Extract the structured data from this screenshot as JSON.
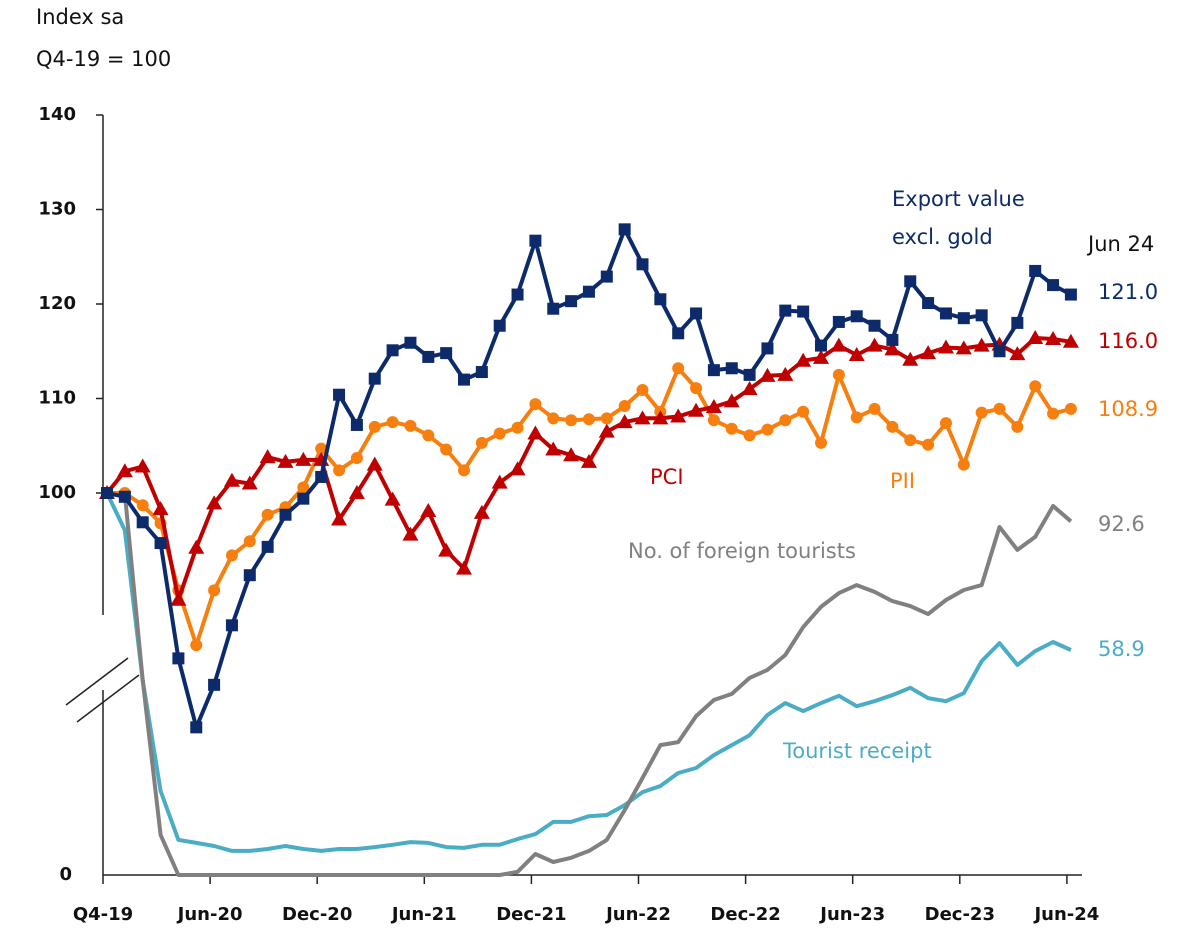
{
  "chart_data": {
    "type": "line",
    "ylabel": [
      "Index sa",
      "Q4-19 = 100"
    ],
    "annotation": "Jun 24",
    "categories": [
      "Q4-19",
      null,
      null,
      null,
      null,
      null,
      "Jun-20",
      null,
      null,
      null,
      null,
      null,
      "Dec-20",
      null,
      null,
      null,
      null,
      null,
      "Jun-21",
      null,
      null,
      null,
      null,
      null,
      "Dec-21",
      null,
      null,
      null,
      null,
      null,
      "Jun-22",
      null,
      null,
      null,
      null,
      null,
      "Dec-22",
      null,
      null,
      null,
      null,
      null,
      "Jun-23",
      null,
      null,
      null,
      null,
      null,
      "Dec-23",
      null,
      null,
      null,
      null,
      null,
      "Jun-24"
    ],
    "ylim": [
      100,
      140
    ],
    "yticks": [
      100,
      110,
      120,
      130,
      140
    ],
    "y2lim": [
      0,
      100
    ],
    "y2ticks": [
      0
    ],
    "series": [
      {
        "name": "Export value excl. gold",
        "color": "#0d2a6b",
        "marker": "square",
        "values": [
          100,
          99.6,
          96.9,
          94.7,
          82.5,
          75.2,
          79.7,
          86.0,
          91.3,
          94.3,
          97.7,
          99.4,
          101.7,
          110.4,
          107.2,
          112.1,
          115.1,
          115.9,
          114.4,
          114.8,
          112.0,
          112.8,
          117.7,
          121.0,
          126.7,
          119.5,
          120.3,
          121.3,
          122.9,
          127.9,
          124.2,
          120.5,
          116.9,
          119.0,
          113.0,
          113.2,
          112.5,
          115.3,
          119.3,
          119.2,
          115.6,
          118.1,
          118.7,
          117.7,
          116.2,
          122.4,
          120.1,
          119.0,
          118.5,
          118.8,
          115.0,
          118.0,
          123.5,
          122.0,
          121.0
        ],
        "value_labels": [
          null,
          null,
          null,
          null,
          null,
          null,
          null,
          null,
          null,
          null,
          null,
          null,
          null,
          null,
          null,
          null,
          null,
          null,
          null,
          null,
          null,
          null,
          null,
          null,
          null,
          null,
          null,
          null,
          null,
          null,
          null,
          null,
          null,
          null,
          null,
          null,
          null,
          null,
          null,
          null,
          null,
          null,
          null,
          null,
          null,
          null,
          null,
          null,
          null,
          null,
          null,
          null,
          null,
          null,
          "121.0"
        ]
      },
      {
        "name": "PCI",
        "color": "#c00000",
        "marker": "triangle",
        "values": [
          100,
          102.3,
          102.8,
          98.3,
          88.7,
          94.2,
          98.9,
          101.3,
          101.0,
          103.8,
          103.3,
          103.5,
          103.5,
          97.2,
          100.0,
          103.0,
          99.3,
          95.6,
          98.1,
          93.9,
          92.0,
          97.9,
          101.1,
          102.5,
          106.3,
          104.6,
          104.0,
          103.3,
          106.5,
          107.5,
          107.9,
          107.9,
          108.1,
          108.7,
          109.1,
          109.7,
          111.0,
          112.4,
          112.5,
          114.0,
          114.3,
          115.6,
          114.6,
          115.6,
          115.2,
          114.1,
          114.8,
          115.4,
          115.3,
          115.6,
          115.7,
          114.7,
          116.4,
          116.3,
          116.0
        ],
        "value_labels": [
          null,
          null,
          null,
          null,
          null,
          null,
          null,
          null,
          null,
          null,
          null,
          null,
          null,
          null,
          null,
          null,
          null,
          null,
          null,
          null,
          null,
          null,
          null,
          null,
          null,
          null,
          null,
          null,
          null,
          null,
          null,
          null,
          null,
          null,
          null,
          null,
          null,
          null,
          null,
          null,
          null,
          null,
          null,
          null,
          null,
          null,
          null,
          null,
          null,
          null,
          null,
          null,
          null,
          null,
          "116.0"
        ]
      },
      {
        "name": "PII",
        "color": "#f77f0f",
        "marker": "circle",
        "values": [
          100,
          100.0,
          98.7,
          96.8,
          89.7,
          83.9,
          89.7,
          93.4,
          94.9,
          97.7,
          98.5,
          100.6,
          104.7,
          102.4,
          103.7,
          107.0,
          107.5,
          107.1,
          106.1,
          104.6,
          102.4,
          105.3,
          106.3,
          106.9,
          109.4,
          107.9,
          107.7,
          107.8,
          107.9,
          109.2,
          110.9,
          108.6,
          113.2,
          111.1,
          107.7,
          106.8,
          106.1,
          106.7,
          107.7,
          108.6,
          105.3,
          112.5,
          108.0,
          108.9,
          107.0,
          105.6,
          105.1,
          107.4,
          103.0,
          108.5,
          108.9,
          107.0,
          111.3,
          108.4,
          108.9
        ],
        "value_labels": [
          null,
          null,
          null,
          null,
          null,
          null,
          null,
          null,
          null,
          null,
          null,
          null,
          null,
          null,
          null,
          null,
          null,
          null,
          null,
          null,
          null,
          null,
          null,
          null,
          null,
          null,
          null,
          null,
          null,
          null,
          null,
          null,
          null,
          null,
          null,
          null,
          null,
          null,
          null,
          null,
          null,
          null,
          null,
          null,
          null,
          null,
          null,
          null,
          null,
          null,
          null,
          null,
          null,
          null,
          "108.9"
        ]
      },
      {
        "name": "No. of foreign tourists",
        "color": "#808080",
        "axis": "y2",
        "values": [
          100,
          100,
          51,
          10.5,
          0,
          0,
          0,
          0,
          0,
          0,
          0,
          0,
          0,
          0,
          0,
          0,
          0,
          0,
          0,
          0,
          0,
          0,
          0,
          0.8,
          5.5,
          3.4,
          4.5,
          6.3,
          9.2,
          17,
          25.4,
          34,
          34.8,
          41.6,
          45.8,
          47.4,
          51.6,
          53.7,
          57.6,
          64.9,
          70.2,
          73.8,
          75.9,
          74.1,
          71.7,
          70.4,
          68.3,
          72.0,
          74.6,
          75.9,
          91.1,
          85.1,
          88.5,
          96.6,
          92.6
        ],
        "value_labels": [
          null,
          null,
          null,
          null,
          null,
          null,
          null,
          null,
          null,
          null,
          null,
          null,
          null,
          null,
          null,
          null,
          null,
          null,
          null,
          null,
          null,
          null,
          null,
          null,
          null,
          null,
          null,
          null,
          null,
          null,
          null,
          null,
          null,
          null,
          null,
          null,
          null,
          null,
          null,
          null,
          null,
          null,
          null,
          null,
          null,
          null,
          null,
          null,
          null,
          null,
          null,
          null,
          null,
          null,
          "92.6"
        ]
      },
      {
        "name": "Tourist receipt",
        "color": "#4bacc6",
        "axis": "y2",
        "values": [
          100,
          90.3,
          51,
          22,
          9.2,
          8.4,
          7.6,
          6.3,
          6.3,
          6.8,
          7.6,
          6.8,
          6.3,
          6.8,
          6.8,
          7.3,
          7.9,
          8.6,
          8.4,
          7.3,
          7.1,
          7.9,
          7.9,
          9.4,
          10.7,
          13.9,
          13.9,
          15.4,
          15.7,
          18.3,
          21.7,
          23.3,
          26.7,
          28.0,
          31.4,
          34.0,
          36.6,
          41.9,
          45.0,
          42.9,
          45.0,
          46.9,
          44.2,
          45.5,
          47.1,
          49.0,
          46.3,
          45.5,
          47.6,
          56.0,
          60.7,
          55.0,
          58.6,
          61.0,
          58.9
        ],
        "value_labels": [
          null,
          null,
          null,
          null,
          null,
          null,
          null,
          null,
          null,
          null,
          null,
          null,
          null,
          null,
          null,
          null,
          null,
          null,
          null,
          null,
          null,
          null,
          null,
          null,
          null,
          null,
          null,
          null,
          null,
          null,
          null,
          null,
          null,
          null,
          null,
          null,
          null,
          null,
          null,
          null,
          null,
          null,
          null,
          null,
          null,
          null,
          null,
          null,
          null,
          null,
          null,
          null,
          null,
          null,
          "58.9"
        ]
      }
    ]
  }
}
